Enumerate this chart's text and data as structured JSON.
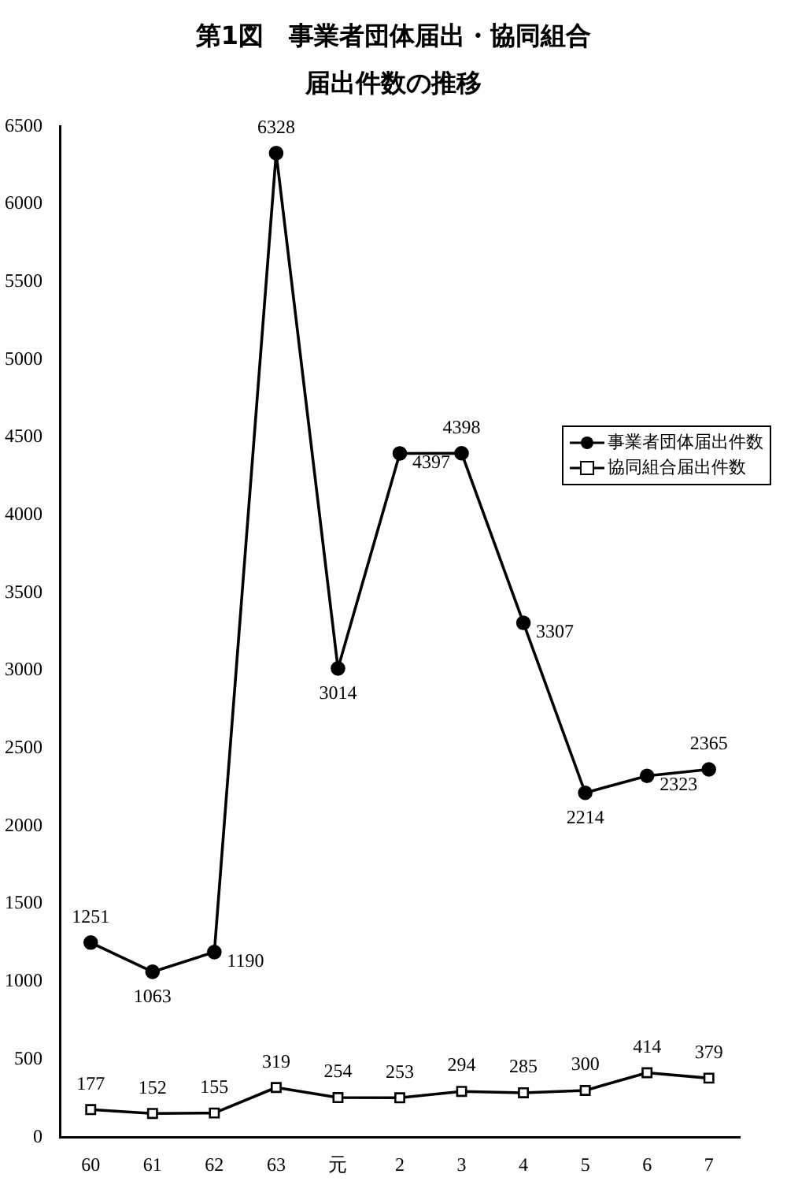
{
  "chart_data": {
    "type": "line",
    "title": "第1図　事業者団体届出・協同組合届出件数の推移",
    "categories": [
      "60",
      "61",
      "62",
      "63",
      "元",
      "2",
      "3",
      "4",
      "5",
      "6",
      "7"
    ],
    "series": [
      {
        "name": "事業者団体届出件数",
        "color": "#000000",
        "marker": "circle",
        "values": [
          1251,
          1063,
          1190,
          6328,
          3014,
          4397,
          4398,
          3307,
          2214,
          2323,
          2365
        ]
      },
      {
        "name": "協同組合届出件数",
        "color": "#000000",
        "marker": "square",
        "values": [
          177,
          152,
          155,
          319,
          254,
          253,
          294,
          285,
          300,
          414,
          379
        ]
      }
    ],
    "ylim": [
      0,
      6500
    ],
    "yticks": [
      0,
      500,
      1000,
      1500,
      2000,
      2500,
      3000,
      3500,
      4000,
      4500,
      5000,
      5500,
      6000,
      6500
    ],
    "grid": false,
    "legend": "right",
    "data_labels": true,
    "line_style": "solid"
  }
}
